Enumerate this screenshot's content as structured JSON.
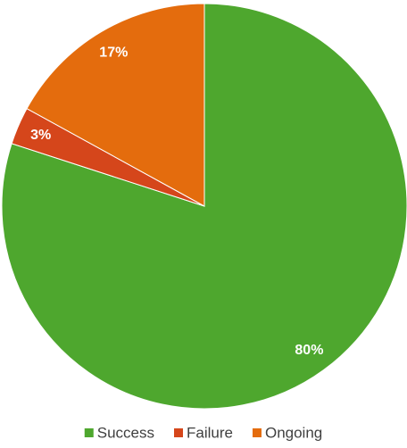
{
  "chart_data": {
    "type": "pie",
    "categories": [
      "Success",
      "Failure",
      "Ongoing"
    ],
    "values": [
      80,
      3,
      17
    ],
    "value_labels": [
      "80%",
      "3%",
      "17%"
    ],
    "colors": [
      "#4ea72e",
      "#d5461b",
      "#e46c0d"
    ],
    "legend": "bottom"
  }
}
